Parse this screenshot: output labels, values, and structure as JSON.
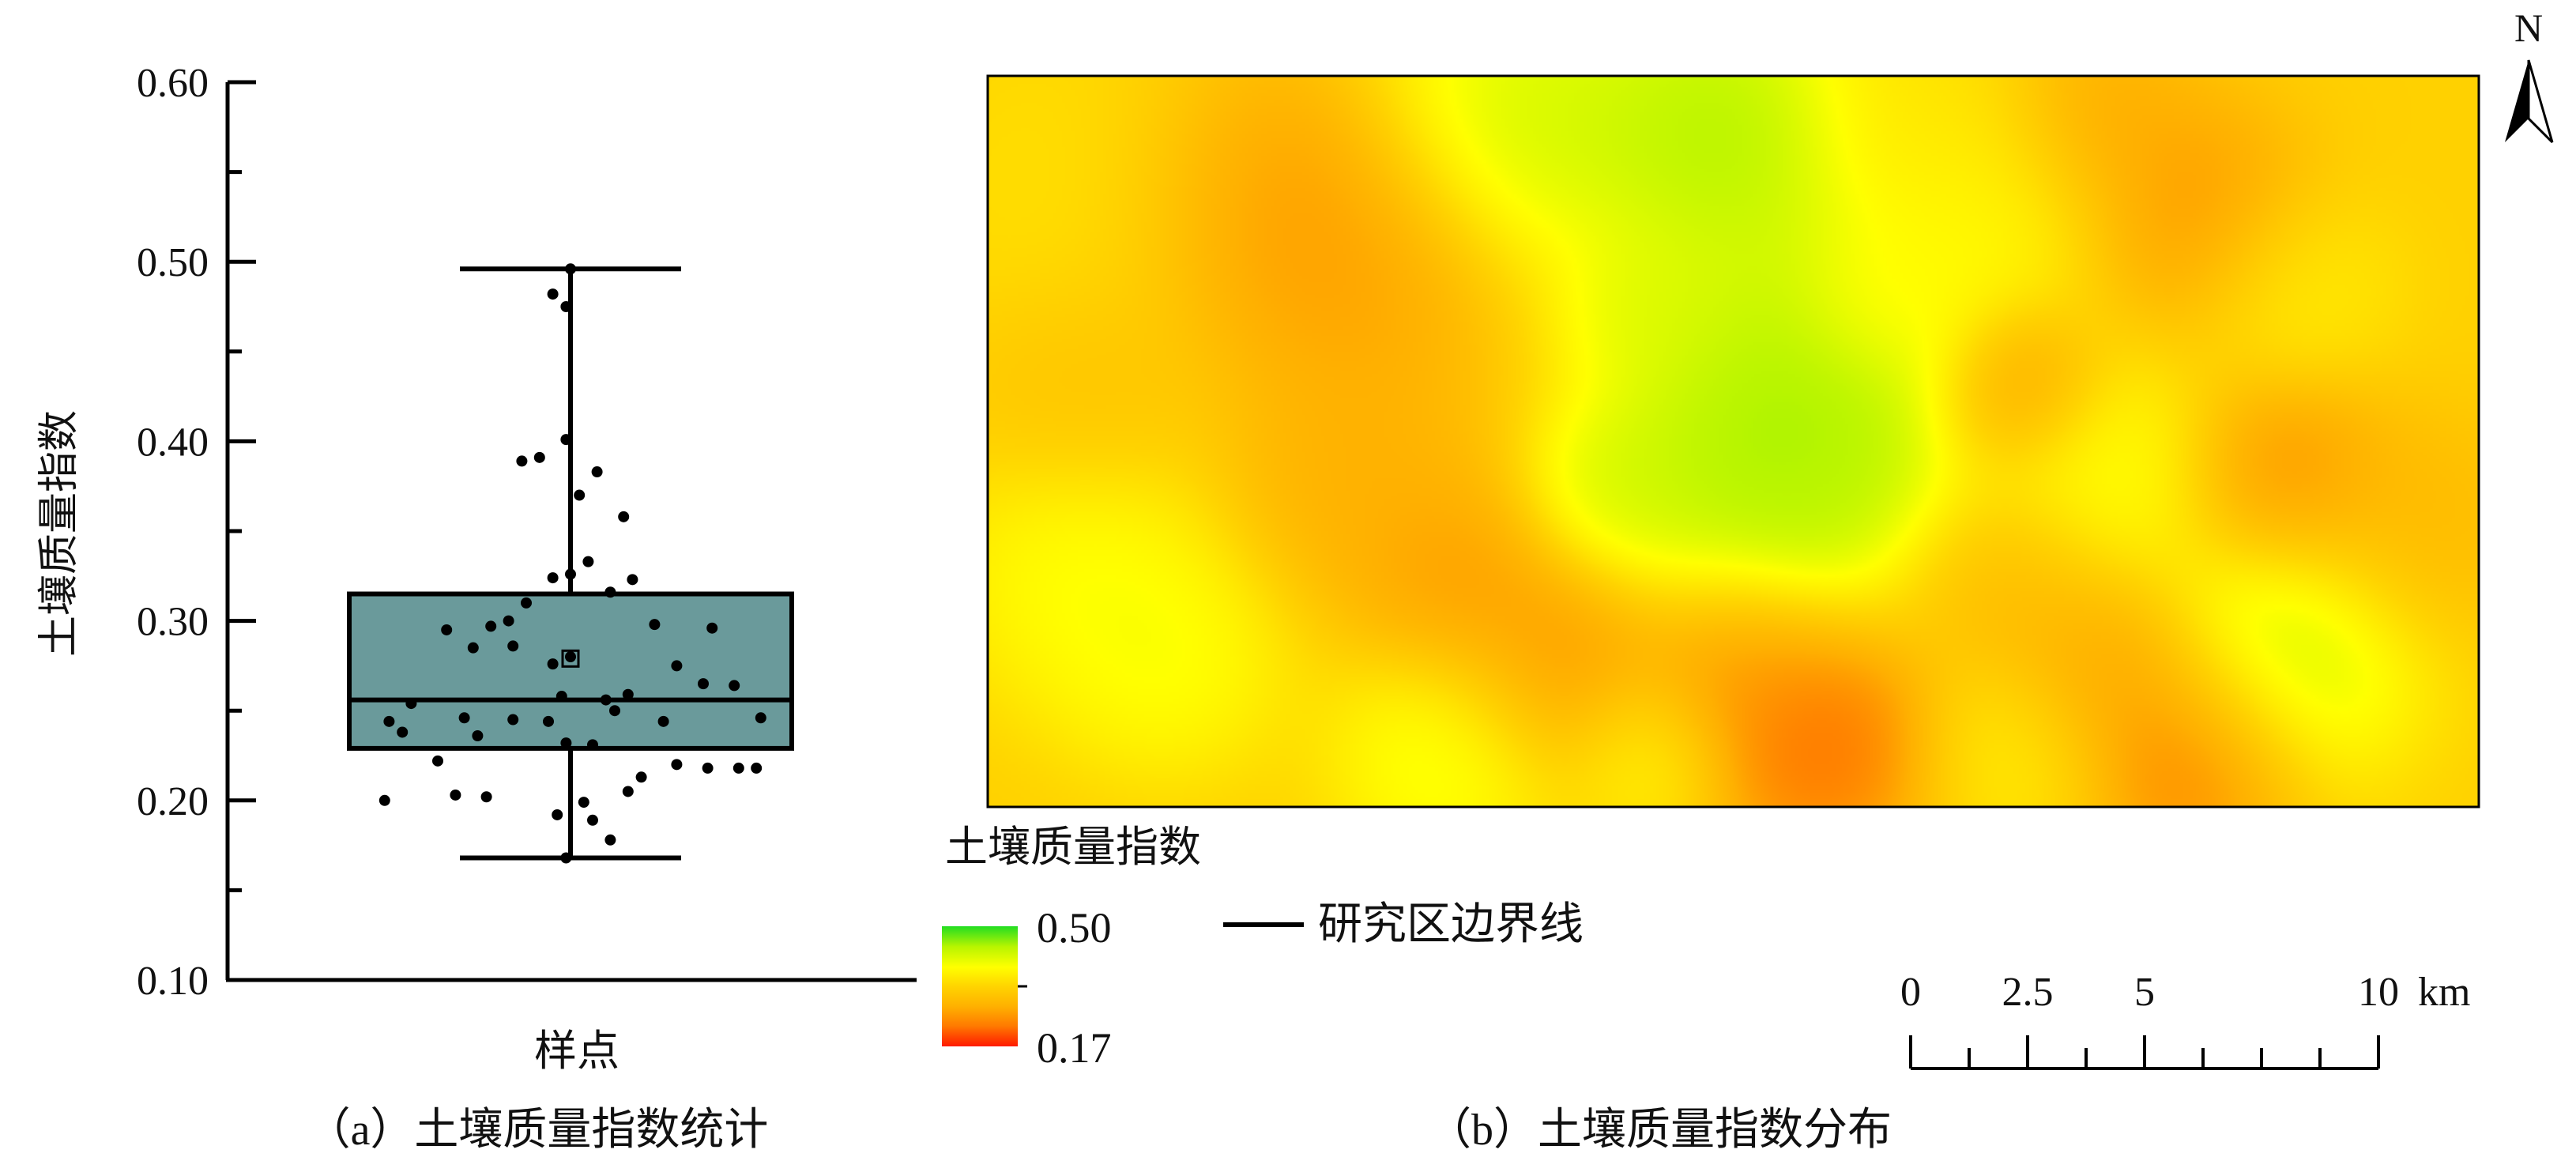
{
  "chart_data": [
    {
      "type": "box",
      "ylabel": "土壤质量指数",
      "xlabel": "样点",
      "caption": "（a）土壤质量指数统计",
      "ylim": [
        0.1,
        0.6
      ],
      "yticks": [
        "0.10",
        "0.20",
        "0.30",
        "0.40",
        "0.50",
        "0.60"
      ],
      "box": {
        "min": 0.168,
        "q1": 0.229,
        "median": 0.256,
        "mean": 0.279,
        "q3": 0.315,
        "max": 0.496
      },
      "box_color": "#6a9a9b",
      "points": [
        [
          0.0,
          0.496
        ],
        [
          -0.04,
          0.482
        ],
        [
          -0.01,
          0.475
        ],
        [
          -0.01,
          0.401
        ],
        [
          -0.11,
          0.389
        ],
        [
          -0.07,
          0.391
        ],
        [
          0.06,
          0.383
        ],
        [
          0.02,
          0.37
        ],
        [
          0.12,
          0.358
        ],
        [
          0.04,
          0.333
        ],
        [
          -0.04,
          0.324
        ],
        [
          0.0,
          0.326
        ],
        [
          0.14,
          0.323
        ],
        [
          0.09,
          0.316
        ],
        [
          -0.1,
          0.31
        ],
        [
          -0.14,
          0.3
        ],
        [
          -0.28,
          0.295
        ],
        [
          -0.18,
          0.297
        ],
        [
          0.19,
          0.298
        ],
        [
          0.32,
          0.296
        ],
        [
          -0.22,
          0.285
        ],
        [
          -0.13,
          0.286
        ],
        [
          -0.04,
          0.276
        ],
        [
          0.0,
          0.28
        ],
        [
          0.24,
          0.275
        ],
        [
          -0.36,
          0.254
        ],
        [
          -0.41,
          0.244
        ],
        [
          -0.24,
          0.246
        ],
        [
          -0.13,
          0.245
        ],
        [
          -0.05,
          0.244
        ],
        [
          -0.02,
          0.258
        ],
        [
          0.08,
          0.256
        ],
        [
          0.13,
          0.259
        ],
        [
          0.1,
          0.25
        ],
        [
          0.21,
          0.244
        ],
        [
          0.3,
          0.265
        ],
        [
          0.37,
          0.264
        ],
        [
          0.43,
          0.246
        ],
        [
          -0.38,
          0.238
        ],
        [
          -0.21,
          0.236
        ],
        [
          -0.01,
          0.232
        ],
        [
          0.05,
          0.231
        ],
        [
          -0.3,
          0.222
        ],
        [
          0.24,
          0.22
        ],
        [
          0.31,
          0.218
        ],
        [
          0.38,
          0.218
        ],
        [
          0.42,
          0.218
        ],
        [
          0.16,
          0.213
        ],
        [
          0.13,
          0.205
        ],
        [
          -0.26,
          0.203
        ],
        [
          -0.19,
          0.202
        ],
        [
          -0.42,
          0.2
        ],
        [
          0.03,
          0.199
        ],
        [
          -0.03,
          0.192
        ],
        [
          0.05,
          0.189
        ],
        [
          0.09,
          0.178
        ],
        [
          -0.01,
          0.168
        ]
      ]
    },
    {
      "type": "heatmap",
      "caption": "（b）土壤质量指数分布",
      "legend_title": "土壤质量指数",
      "legend_max": "0.50",
      "legend_min": "0.17",
      "boundary_label": "研究区边界线",
      "colors": [
        "#ff1a00",
        "#ff7a00",
        "#ffb000",
        "#ffd400",
        "#ffff00",
        "#b8f500",
        "#22dd22"
      ],
      "field_base": 0.33,
      "field_spots": [
        [
          0.06,
          0.16,
          0.1,
          0.36
        ],
        [
          0.19,
          0.17,
          0.09,
          0.23
        ],
        [
          0.25,
          0.29,
          0.08,
          0.25
        ],
        [
          0.36,
          0.05,
          0.09,
          0.46
        ],
        [
          0.49,
          0.07,
          0.09,
          0.5
        ],
        [
          0.63,
          0.05,
          0.07,
          0.36
        ],
        [
          0.68,
          0.17,
          0.07,
          0.4
        ],
        [
          0.6,
          0.31,
          0.05,
          0.36
        ],
        [
          0.74,
          0.06,
          0.06,
          0.25
        ],
        [
          0.81,
          0.18,
          0.07,
          0.23
        ],
        [
          0.88,
          0.29,
          0.06,
          0.38
        ],
        [
          0.56,
          0.42,
          0.11,
          0.5
        ],
        [
          0.5,
          0.55,
          0.09,
          0.48
        ],
        [
          0.44,
          0.32,
          0.05,
          0.43
        ],
        [
          0.42,
          0.56,
          0.05,
          0.44
        ],
        [
          0.56,
          0.55,
          0.05,
          0.45
        ],
        [
          0.06,
          0.43,
          0.07,
          0.3
        ],
        [
          0.25,
          0.55,
          0.08,
          0.26
        ],
        [
          0.31,
          0.69,
          0.06,
          0.24
        ],
        [
          0.06,
          0.68,
          0.08,
          0.42
        ],
        [
          0.12,
          0.8,
          0.07,
          0.42
        ],
        [
          0.38,
          0.81,
          0.07,
          0.22
        ],
        [
          0.5,
          0.81,
          0.06,
          0.23
        ],
        [
          0.56,
          0.92,
          0.07,
          0.17
        ],
        [
          0.31,
          0.93,
          0.07,
          0.44
        ],
        [
          0.44,
          0.93,
          0.05,
          0.4
        ],
        [
          0.69,
          0.43,
          0.05,
          0.22
        ],
        [
          0.75,
          0.55,
          0.07,
          0.42
        ],
        [
          0.69,
          0.69,
          0.06,
          0.28
        ],
        [
          0.75,
          0.81,
          0.06,
          0.25
        ],
        [
          0.69,
          0.93,
          0.06,
          0.38
        ],
        [
          0.81,
          0.93,
          0.07,
          0.18
        ],
        [
          0.87,
          0.55,
          0.06,
          0.22
        ],
        [
          0.87,
          0.8,
          0.08,
          0.48
        ],
        [
          0.96,
          0.62,
          0.07,
          0.28
        ]
      ],
      "north_label": "N",
      "scale_labels": [
        "0",
        "2.5",
        "5",
        "10"
      ],
      "scale_unit": "km"
    }
  ]
}
